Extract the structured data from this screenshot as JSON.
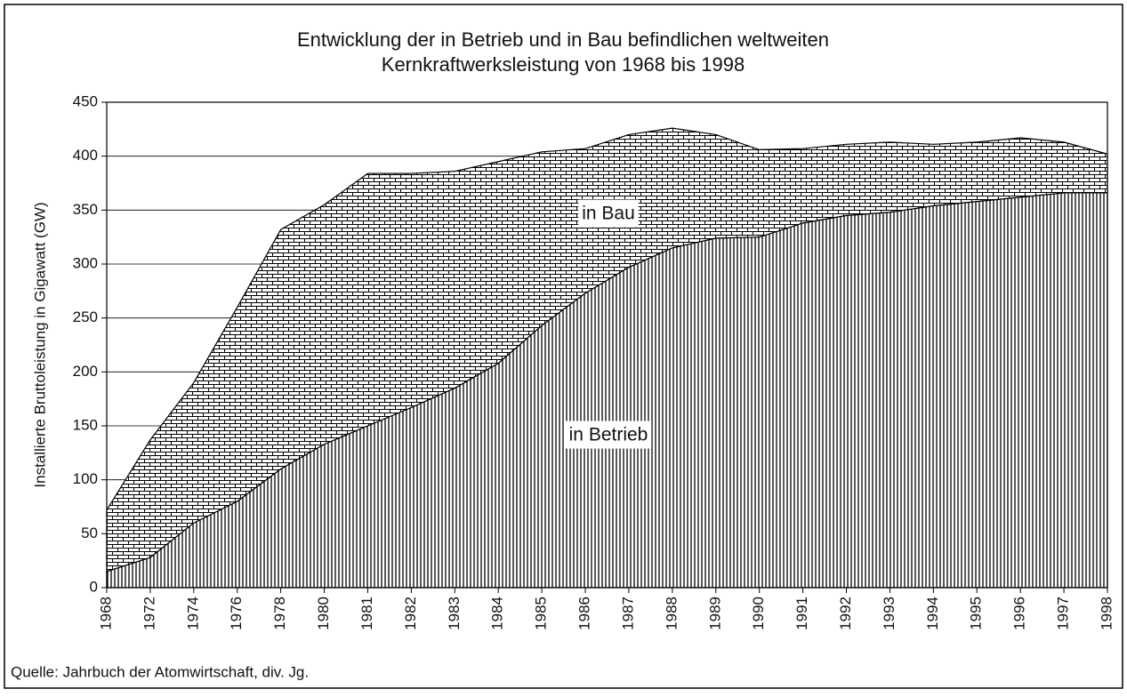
{
  "chart_data": {
    "type": "stacked_area",
    "title": [
      "Entwicklung der in Betrieb und in Bau befindlichen weltweiten",
      "Kernkraftwerksleistung von 1968 bis 1998"
    ],
    "y_label": "Installierte Bruttoleistung in Gigawatt (GW)",
    "source": "Quelle: Jahrbuch der Atomwirtschaft, div. Jg.",
    "categories": [
      "1968",
      "1972",
      "1974",
      "1976",
      "1978",
      "1980",
      "1981",
      "1982",
      "1983",
      "1984",
      "1985",
      "1986",
      "1987",
      "1988",
      "1989",
      "1990",
      "1991",
      "1992",
      "1993",
      "1994",
      "1995",
      "1996",
      "1997",
      "1998"
    ],
    "series": [
      {
        "name": "in Betrieb",
        "color": "#000000",
        "values": [
          15,
          28,
          60,
          80,
          110,
          133,
          150,
          167,
          185,
          208,
          243,
          273,
          297,
          315,
          324,
          325,
          338,
          345,
          348,
          354,
          358,
          362,
          366,
          366
        ]
      },
      {
        "name": "in Bau",
        "color": "#000000",
        "values": [
          57,
          109,
          130,
          180,
          222,
          222,
          234,
          217,
          201,
          187,
          161,
          134,
          123,
          111,
          96,
          81,
          69,
          66,
          65,
          57,
          55,
          55,
          47,
          36
        ]
      }
    ],
    "ylim": [
      0,
      450
    ],
    "yticks": [
      0,
      50,
      100,
      150,
      200,
      250,
      300,
      350,
      400,
      450
    ],
    "grid": true
  }
}
